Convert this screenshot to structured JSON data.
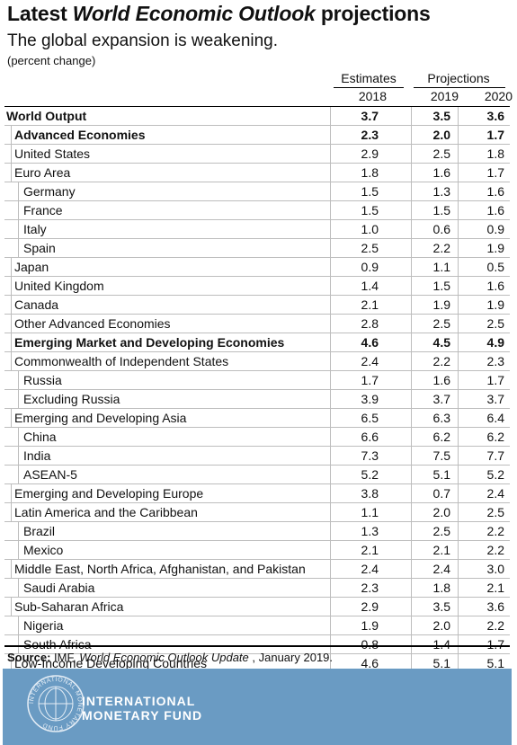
{
  "header": {
    "title_prefix": "Latest ",
    "title_emphasis": "World Economic Outlook",
    "title_suffix": " projections",
    "subtitle": "The global expansion is weakening.",
    "unit": "(percent change)"
  },
  "columns": {
    "estimates_label": "Estimates",
    "projections_label": "Projections",
    "years": [
      "2018",
      "2019",
      "2020"
    ]
  },
  "rows": [
    {
      "label": "World Output",
      "values": [
        "3.7",
        "3.5",
        "3.6"
      ],
      "level": 0,
      "bold": true
    },
    {
      "label": "Advanced Economies",
      "values": [
        "2.3",
        "2.0",
        "1.7"
      ],
      "level": 1,
      "bold": true
    },
    {
      "label": "United States",
      "values": [
        "2.9",
        "2.5",
        "1.8"
      ],
      "level": 1,
      "bold": false
    },
    {
      "label": "Euro Area",
      "values": [
        "1.8",
        "1.6",
        "1.7"
      ],
      "level": 1,
      "bold": false
    },
    {
      "label": "Germany",
      "values": [
        "1.5",
        "1.3",
        "1.6"
      ],
      "level": 2,
      "bold": false
    },
    {
      "label": "France",
      "values": [
        "1.5",
        "1.5",
        "1.6"
      ],
      "level": 2,
      "bold": false
    },
    {
      "label": "Italy",
      "values": [
        "1.0",
        "0.6",
        "0.9"
      ],
      "level": 2,
      "bold": false
    },
    {
      "label": "Spain",
      "values": [
        "2.5",
        "2.2",
        "1.9"
      ],
      "level": 2,
      "bold": false
    },
    {
      "label": "Japan",
      "values": [
        "0.9",
        "1.1",
        "0.5"
      ],
      "level": 1,
      "bold": false
    },
    {
      "label": "United Kingdom",
      "values": [
        "1.4",
        "1.5",
        "1.6"
      ],
      "level": 1,
      "bold": false
    },
    {
      "label": "Canada",
      "values": [
        "2.1",
        "1.9",
        "1.9"
      ],
      "level": 1,
      "bold": false
    },
    {
      "label": "Other Advanced Economies",
      "values": [
        "2.8",
        "2.5",
        "2.5"
      ],
      "level": 1,
      "bold": false
    },
    {
      "label": "Emerging Market and Developing Economies",
      "values": [
        "4.6",
        "4.5",
        "4.9"
      ],
      "level": 1,
      "bold": true
    },
    {
      "label": "Commonwealth of Independent States",
      "values": [
        "2.4",
        "2.2",
        "2.3"
      ],
      "level": 1,
      "bold": false
    },
    {
      "label": "Russia",
      "values": [
        "1.7",
        "1.6",
        "1.7"
      ],
      "level": 2,
      "bold": false
    },
    {
      "label": "Excluding Russia",
      "values": [
        "3.9",
        "3.7",
        "3.7"
      ],
      "level": 2,
      "bold": false
    },
    {
      "label": "Emerging and Developing Asia",
      "values": [
        "6.5",
        "6.3",
        "6.4"
      ],
      "level": 1,
      "bold": false
    },
    {
      "label": "China",
      "values": [
        "6.6",
        "6.2",
        "6.2"
      ],
      "level": 2,
      "bold": false
    },
    {
      "label": "India",
      "values": [
        "7.3",
        "7.5",
        "7.7"
      ],
      "level": 2,
      "bold": false
    },
    {
      "label": "ASEAN-5",
      "values": [
        "5.2",
        "5.1",
        "5.2"
      ],
      "level": 2,
      "bold": false
    },
    {
      "label": "Emerging and Developing Europe",
      "values": [
        "3.8",
        "0.7",
        "2.4"
      ],
      "level": 1,
      "bold": false
    },
    {
      "label": "Latin America and the Caribbean",
      "values": [
        "1.1",
        "2.0",
        "2.5"
      ],
      "level": 1,
      "bold": false
    },
    {
      "label": "Brazil",
      "values": [
        "1.3",
        "2.5",
        "2.2"
      ],
      "level": 2,
      "bold": false
    },
    {
      "label": "Mexico",
      "values": [
        "2.1",
        "2.1",
        "2.2"
      ],
      "level": 2,
      "bold": false
    },
    {
      "label": "Middle East, North Africa, Afghanistan, and Pakistan",
      "values": [
        "2.4",
        "2.4",
        "3.0"
      ],
      "level": 1,
      "bold": false
    },
    {
      "label": "Saudi Arabia",
      "values": [
        "2.3",
        "1.8",
        "2.1"
      ],
      "level": 2,
      "bold": false
    },
    {
      "label": "Sub-Saharan Africa",
      "values": [
        "2.9",
        "3.5",
        "3.6"
      ],
      "level": 1,
      "bold": false
    },
    {
      "label": "Nigeria",
      "values": [
        "1.9",
        "2.0",
        "2.2"
      ],
      "level": 2,
      "bold": false
    },
    {
      "label": "South Africa",
      "values": [
        "0.8",
        "1.4",
        "1.7"
      ],
      "level": 2,
      "bold": false
    },
    {
      "label": "Low-Income Developing Countries",
      "values": [
        "4.6",
        "5.1",
        "5.1"
      ],
      "level": 1,
      "bold": false
    }
  ],
  "source": {
    "label": "Source:",
    "org": " IMF, ",
    "publication": "World Economic Outlook Update",
    "date": " , January 2019."
  },
  "footer": {
    "line1": "INTERNATIONAL",
    "line2": "MONETARY FUND",
    "seal_text": "INTERNATIONAL MONETARY FUND",
    "background": "#6a9bc3"
  }
}
